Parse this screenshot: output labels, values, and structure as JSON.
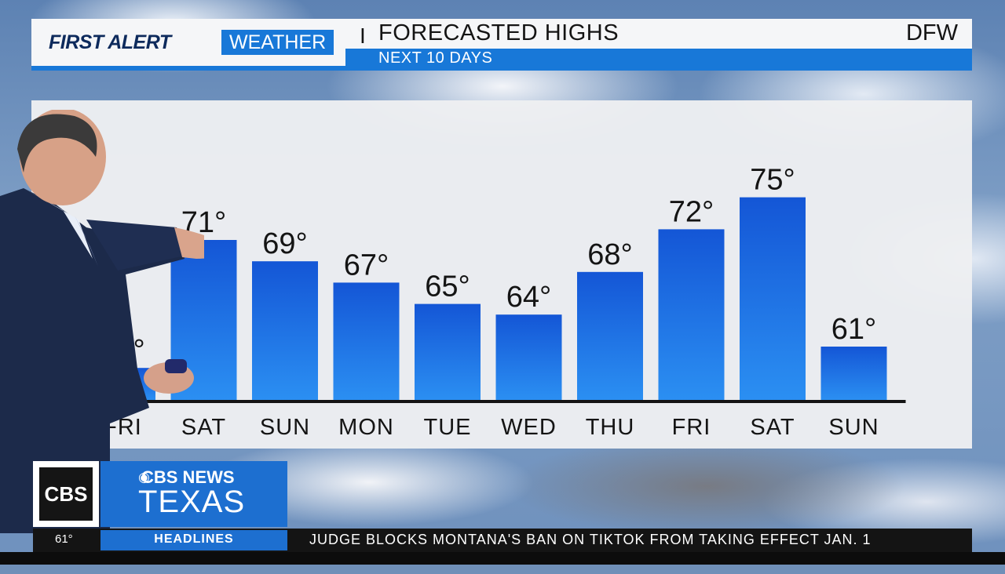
{
  "header": {
    "brand_first": "FIRST ALERT",
    "brand_weather": "WEATHER",
    "separator": "I",
    "title": "FORECASTED HIGHS",
    "subtitle": "NEXT 10 DAYS",
    "location": "DFW"
  },
  "chart_data": {
    "type": "bar",
    "categories": [
      "FRI",
      "SAT",
      "SUN",
      "MON",
      "TUE",
      "WED",
      "THU",
      "FRI",
      "SAT",
      "SUN"
    ],
    "values": [
      59,
      71,
      69,
      67,
      65,
      64,
      68,
      72,
      75,
      61
    ],
    "data_label_suffix": "°",
    "bar_color": "#1a6fe0",
    "bar_color_light": "#2a8cf0",
    "ylim": [
      56,
      76
    ],
    "grid": false
  },
  "lower_third": {
    "logo": "CBS 11",
    "network_line1": "CBS NEWS",
    "network_line2": "TEXAS",
    "ticker_temp": "61°",
    "ticker_label": "HEADLINES",
    "ticker_text": "JUDGE BLOCKS MONTANA'S BAN ON TIKTOK FROM TAKING EFFECT JAN. 1"
  },
  "colors": {
    "accent": "#1878d8",
    "title_text": "#141414",
    "brand_navy": "#0d2a5c"
  }
}
